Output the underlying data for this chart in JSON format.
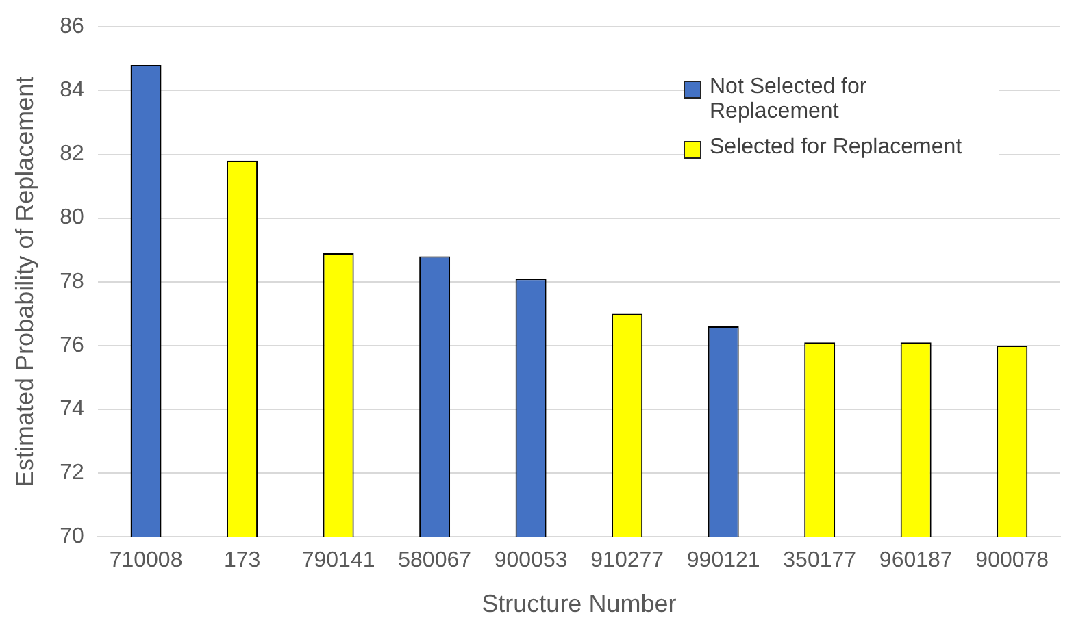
{
  "chart_data": {
    "type": "bar",
    "xlabel": "Structure Number",
    "ylabel": "Estimated Probability of Replacement",
    "categories": [
      "710008",
      "173",
      "790141",
      "580067",
      "900053",
      "910277",
      "990121",
      "350177",
      "960187",
      "900078"
    ],
    "series": [
      {
        "name": "Not Selected for Replacement",
        "color": "#4472c4",
        "values": [
          84.8,
          null,
          null,
          78.8,
          78.1,
          null,
          76.6,
          null,
          null,
          null
        ]
      },
      {
        "name": "Selected for Replacement",
        "color": "#ffff00",
        "values": [
          null,
          81.8,
          78.9,
          null,
          null,
          77.0,
          null,
          76.1,
          76.1,
          76.0
        ]
      }
    ],
    "ylim": [
      70,
      86
    ],
    "yticks": [
      70,
      72,
      74,
      76,
      78,
      80,
      82,
      84,
      86
    ],
    "grid": "y",
    "legend": "top right"
  }
}
